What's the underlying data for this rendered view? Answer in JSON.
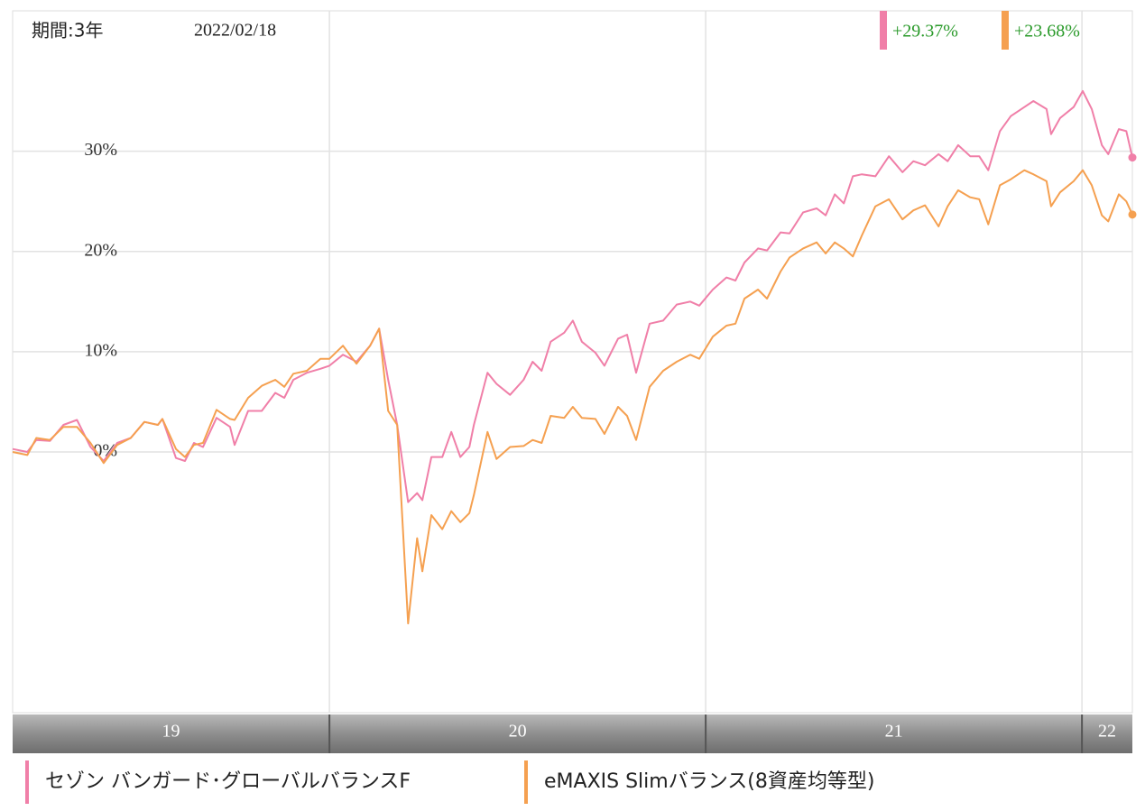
{
  "chart_data": {
    "type": "line",
    "period": "期間:3年",
    "date": "2022/02/18",
    "xlim": [
      2019.158,
      2022.134
    ],
    "ylim": [
      -26,
      44
    ],
    "yticks": [
      {
        "value": 0,
        "label": "0%"
      },
      {
        "value": 10,
        "label": "10%"
      },
      {
        "value": 20,
        "label": "20%"
      },
      {
        "value": 30,
        "label": "30%"
      }
    ],
    "xticks": [
      {
        "value": 2019,
        "label": "19"
      },
      {
        "value": 2020,
        "label": "20"
      },
      {
        "value": 2021,
        "label": "21"
      },
      {
        "value": 2022,
        "label": "22"
      }
    ],
    "grid": true,
    "x": [
      2019.158,
      2019.197,
      2019.221,
      2019.257,
      2019.293,
      2019.329,
      2019.365,
      2019.4,
      2019.436,
      2019.472,
      2019.508,
      2019.544,
      2019.556,
      2019.592,
      2019.616,
      2019.64,
      2019.664,
      2019.7,
      2019.736,
      2019.748,
      2019.784,
      2019.82,
      2019.856,
      2019.88,
      2019.904,
      2019.94,
      2019.976,
      2020.0,
      2020.036,
      2020.072,
      2020.108,
      2020.132,
      2020.156,
      2020.18,
      2020.209,
      2020.233,
      2020.247,
      2020.271,
      2020.3,
      2020.324,
      2020.348,
      2020.372,
      2020.384,
      2020.42,
      2020.444,
      2020.48,
      2020.516,
      2020.54,
      2020.564,
      2020.588,
      2020.624,
      2020.647,
      2020.671,
      2020.707,
      2020.731,
      2020.767,
      2020.791,
      2020.815,
      2020.851,
      2020.887,
      2020.923,
      2020.959,
      2020.983,
      2021.019,
      2021.055,
      2021.079,
      2021.103,
      2021.139,
      2021.163,
      2021.199,
      2021.223,
      2021.259,
      2021.295,
      2021.319,
      2021.343,
      2021.367,
      2021.391,
      2021.415,
      2021.451,
      2021.487,
      2021.523,
      2021.552,
      2021.583,
      2021.619,
      2021.643,
      2021.671,
      2021.703,
      2021.727,
      2021.751,
      2021.782,
      2021.811,
      2021.847,
      2021.871,
      2021.906,
      2021.918,
      2021.942,
      2021.978,
      2022.002,
      2022.026,
      2022.053,
      2022.07,
      2022.098,
      2022.118,
      2022.134
    ],
    "series": [
      {
        "name": "セゾン バンガード･グローバルバランスF",
        "color": "#f07fa8",
        "change": "+29.37%",
        "values": [
          0.3,
          0,
          1.2,
          1.1,
          2.7,
          3.2,
          0.5,
          -0.9,
          0.9,
          1.4,
          3.0,
          2.7,
          3.3,
          -0.6,
          -0.9,
          0.9,
          0.5,
          3.4,
          2.5,
          0.7,
          4.1,
          4.1,
          5.9,
          5.4,
          7.2,
          7.9,
          8.3,
          8.6,
          9.7,
          9.0,
          10.6,
          12.3,
          7.2,
          2.7,
          -5.0,
          -4.1,
          -4.8,
          -0.5,
          -0.5,
          2.0,
          -0.5,
          0.5,
          2.7,
          7.9,
          6.8,
          5.7,
          7.2,
          9.0,
          8.1,
          11.0,
          11.9,
          13.1,
          11.0,
          9.9,
          8.6,
          11.3,
          11.7,
          7.9,
          12.8,
          13.1,
          14.7,
          15.0,
          14.6,
          16.2,
          17.4,
          17.1,
          18.9,
          20.3,
          20.1,
          21.9,
          21.8,
          23.9,
          24.3,
          23.6,
          25.7,
          24.8,
          27.5,
          27.7,
          27.5,
          29.5,
          27.9,
          29.0,
          28.6,
          29.7,
          29.0,
          30.6,
          29.5,
          29.5,
          28.1,
          32.0,
          33.5,
          34.4,
          35.0,
          34.2,
          31.7,
          33.3,
          34.4,
          36.0,
          34.2,
          30.6,
          29.7,
          32.2,
          32.0,
          29.37
        ]
      },
      {
        "name": "eMAXIS Slimバランス(8資産均等型)",
        "color": "#f5a050",
        "change": "+23.68%",
        "values": [
          0,
          -0.3,
          1.4,
          1.2,
          2.5,
          2.5,
          0.9,
          -1.1,
          0.7,
          1.4,
          3.0,
          2.7,
          3.3,
          0.3,
          -0.5,
          0.7,
          0.9,
          4.2,
          3.3,
          3.2,
          5.4,
          6.6,
          7.2,
          6.5,
          7.8,
          8.1,
          9.3,
          9.3,
          10.6,
          8.8,
          10.6,
          12.3,
          4.1,
          2.7,
          -17.1,
          -8.6,
          -11.9,
          -6.3,
          -7.7,
          -5.9,
          -7.0,
          -6.1,
          -4.3,
          2.0,
          -0.7,
          0.5,
          0.6,
          1.2,
          0.9,
          3.6,
          3.4,
          4.5,
          3.4,
          3.3,
          1.8,
          4.5,
          3.6,
          1.2,
          6.5,
          8.1,
          9.0,
          9.7,
          9.3,
          11.5,
          12.6,
          12.8,
          15.3,
          16.2,
          15.3,
          18.0,
          19.4,
          20.3,
          20.9,
          19.8,
          20.9,
          20.3,
          19.5,
          21.6,
          24.5,
          25.2,
          23.2,
          24.1,
          24.6,
          22.5,
          24.5,
          26.1,
          25.4,
          25.2,
          22.7,
          26.6,
          27.2,
          28.1,
          27.7,
          27.0,
          24.5,
          25.9,
          27.0,
          28.1,
          26.6,
          23.6,
          23.0,
          25.7,
          25.0,
          23.68
        ]
      }
    ]
  }
}
